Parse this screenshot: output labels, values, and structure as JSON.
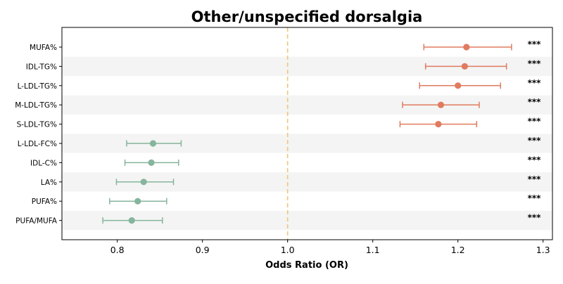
{
  "chart_data": {
    "type": "forest",
    "title": "Other/unspecified dorsalgia",
    "xlabel": "Odds Ratio (OR)",
    "ylabel": "",
    "xlim": [
      0.735,
      1.311
    ],
    "xticks": [
      0.8,
      0.9,
      1.0,
      1.1,
      1.2,
      1.3
    ],
    "xtick_labels": [
      "0.8",
      "0.9",
      "1.0",
      "1.1",
      "1.2",
      "1.3"
    ],
    "reference_line": 1.0,
    "significance_marker": "***",
    "colors": {
      "positive": "#e07b5f",
      "negative": "#85b59c",
      "reference": "#f2c57a",
      "stripe": "#f4f4f4"
    },
    "rows": [
      {
        "label": "MUFA%",
        "or": 1.21,
        "ci_low": 1.16,
        "ci_high": 1.263,
        "sig": "***"
      },
      {
        "label": "IDL-TG%",
        "or": 1.208,
        "ci_low": 1.162,
        "ci_high": 1.257,
        "sig": "***"
      },
      {
        "label": "L-LDL-TG%",
        "or": 1.2,
        "ci_low": 1.155,
        "ci_high": 1.25,
        "sig": "***"
      },
      {
        "label": "M-LDL-TG%",
        "or": 1.18,
        "ci_low": 1.135,
        "ci_high": 1.225,
        "sig": "***"
      },
      {
        "label": "S-LDL-TG%",
        "or": 1.177,
        "ci_low": 1.132,
        "ci_high": 1.222,
        "sig": "***"
      },
      {
        "label": "L-LDL-FC%",
        "or": 0.842,
        "ci_low": 0.811,
        "ci_high": 0.875,
        "sig": "***"
      },
      {
        "label": "IDL-C%",
        "or": 0.84,
        "ci_low": 0.809,
        "ci_high": 0.872,
        "sig": "***"
      },
      {
        "label": "LA%",
        "or": 0.831,
        "ci_low": 0.799,
        "ci_high": 0.866,
        "sig": "***"
      },
      {
        "label": "PUFA%",
        "or": 0.824,
        "ci_low": 0.791,
        "ci_high": 0.858,
        "sig": "***"
      },
      {
        "label": "PUFA/MUFA",
        "or": 0.817,
        "ci_low": 0.783,
        "ci_high": 0.853,
        "sig": "***"
      }
    ]
  }
}
